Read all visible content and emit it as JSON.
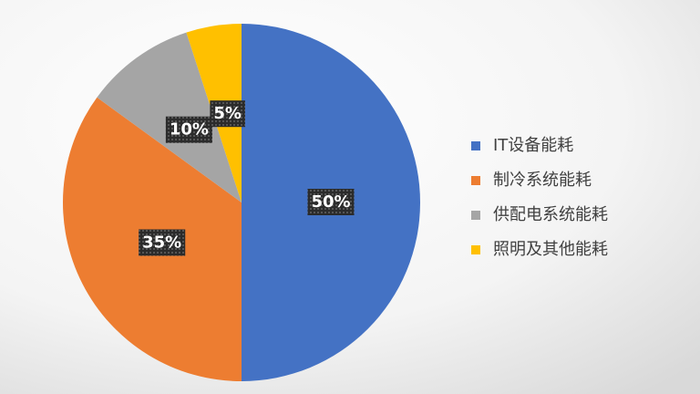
{
  "chart_data": {
    "type": "pie",
    "categories": [
      "IT设备能耗",
      "制冷系统能耗",
      "供配电系统能耗",
      "照明及其他能耗"
    ],
    "values": [
      50,
      35,
      10,
      5
    ],
    "value_labels": [
      "50%",
      "35%",
      "10%",
      "5%"
    ],
    "colors": [
      "#4472c4",
      "#ed7d31",
      "#a5a5a5",
      "#ffc000"
    ],
    "legend": "right"
  }
}
